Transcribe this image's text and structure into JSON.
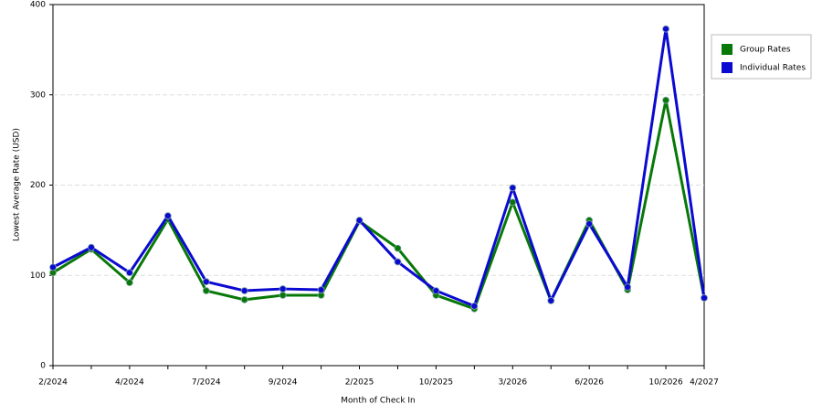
{
  "chart_data": {
    "type": "line",
    "x_label": "Month of Check In",
    "y_label": "Lowest Average Rate (USD)",
    "categories": [
      "2/2024",
      null,
      "4/2024",
      null,
      "7/2024",
      null,
      "9/2024",
      null,
      "2/2025",
      null,
      "10/2025",
      null,
      "3/2026",
      null,
      "6/2026",
      null,
      "10/2026",
      "4/2027"
    ],
    "series": [
      {
        "name": "Group Rates",
        "color": "#087808",
        "values": [
          103,
          129,
          92,
          162,
          83,
          73,
          78,
          78,
          160,
          130,
          78,
          63,
          181,
          72,
          161,
          84,
          294,
          75
        ]
      },
      {
        "name": "Individual Rates",
        "color": "#0a0ad0",
        "values": [
          109,
          131,
          103,
          166,
          93,
          83,
          85,
          84,
          161,
          115,
          83,
          66,
          197,
          72,
          157,
          87,
          373,
          75
        ]
      }
    ],
    "ylim": [
      0,
      400
    ],
    "yticks": [
      0,
      100,
      200,
      300,
      400
    ],
    "grid": true,
    "legend": "right"
  }
}
